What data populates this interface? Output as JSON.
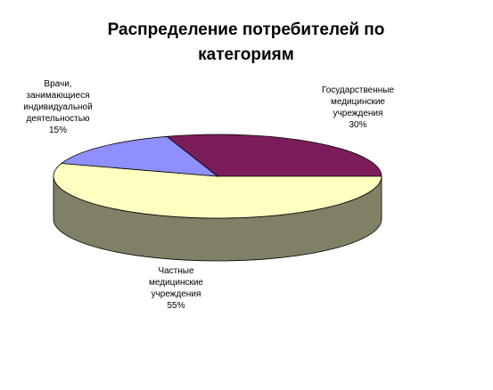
{
  "title_lines": [
    "Распределение потребителей по",
    "категориям"
  ],
  "colors": {
    "gov_top": "#7c1d5a",
    "gov_side": "#5a1342",
    "private_top": "#ffffc0",
    "private_side": "#808066",
    "doctors_top": "#8f8fff",
    "doctors_side": "#6060c0",
    "outline": "#000000"
  },
  "chart_data": {
    "type": "pie",
    "title": "Распределение потребителей по категориям",
    "three_d": true,
    "slices": [
      {
        "name": "Государственные медицинские учреждения",
        "value": 30,
        "label_lines": [
          "Государственные",
          "медицинские",
          "учреждения"
        ],
        "percent_label": "30%",
        "color_key": "gov"
      },
      {
        "name": "Частные медицинские учреждения",
        "value": 55,
        "label_lines": [
          "Частные",
          "медицинские",
          "учреждения"
        ],
        "percent_label": "55%",
        "color_key": "private"
      },
      {
        "name": "Врачи, занимающиеся индивидуальной деятельностью",
        "value": 15,
        "label_lines": [
          "Врачи,",
          "занимающиеся",
          "индивидуальной",
          "деятельностью"
        ],
        "percent_label": "15%",
        "color_key": "doctors"
      }
    ]
  }
}
